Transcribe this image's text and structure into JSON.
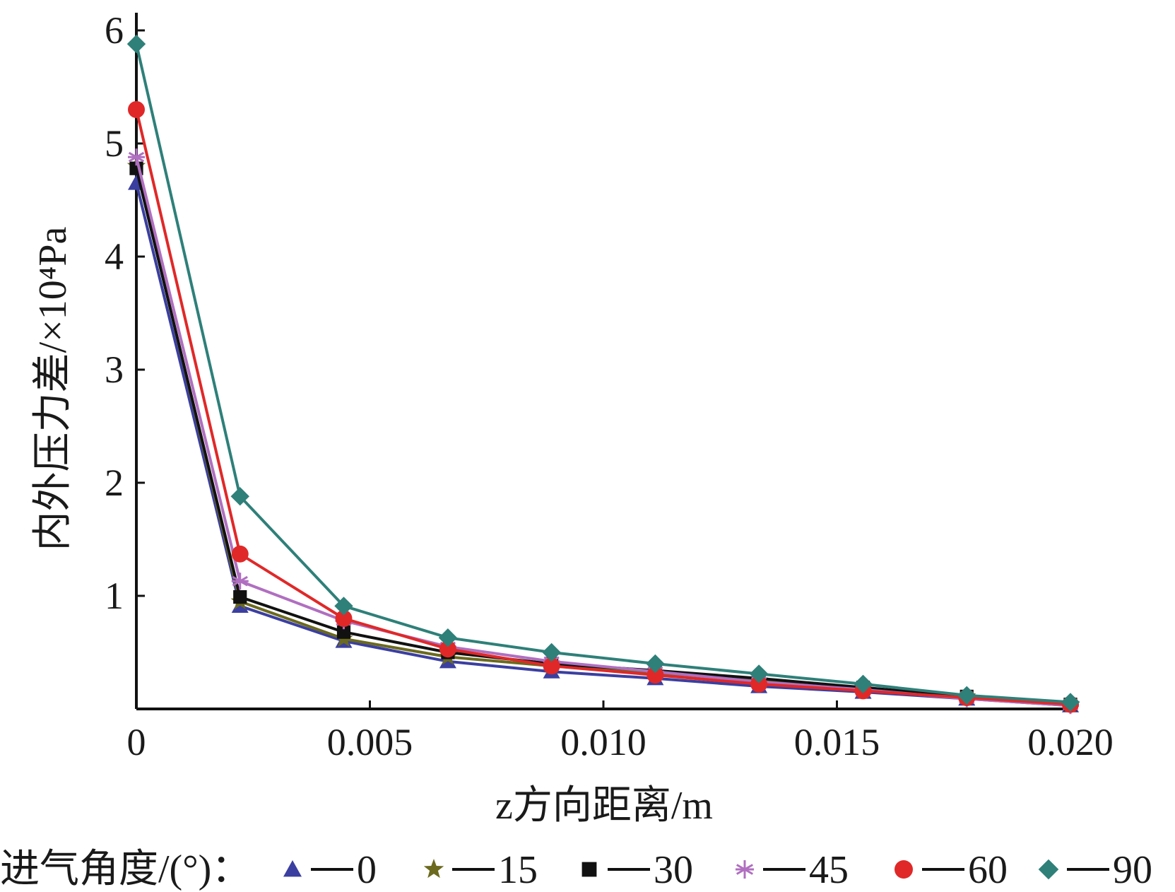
{
  "chart_data": {
    "type": "line",
    "xlabel": "z方向距离/m",
    "ylabel": "内外压力差/×10⁴Pa",
    "xlim": [
      0,
      0.02
    ],
    "ylim": [
      0,
      6
    ],
    "x_ticks": [
      "0",
      "0.005",
      "0.010",
      "0.015",
      "0.020"
    ],
    "x_tick_values": [
      0,
      0.005,
      0.01,
      0.015,
      0.02
    ],
    "y_ticks": [
      "1",
      "2",
      "3",
      "4",
      "5",
      "6"
    ],
    "y_tick_values": [
      1,
      2,
      3,
      4,
      5,
      6
    ],
    "grid": false,
    "legend_position": "bottom",
    "legend_title": "进气角度/(°)：",
    "x": [
      0,
      0.00222,
      0.00444,
      0.00667,
      0.00889,
      0.01111,
      0.01333,
      0.01556,
      0.01778,
      0.02
    ],
    "series": [
      {
        "name": "0",
        "marker": "triangle",
        "color": "#3b3fa0",
        "values": [
          4.65,
          0.91,
          0.6,
          0.42,
          0.33,
          0.27,
          0.2,
          0.15,
          0.09,
          0.03
        ]
      },
      {
        "name": "15",
        "marker": "star",
        "color": "#6b6a1e",
        "values": [
          4.8,
          0.95,
          0.62,
          0.46,
          0.38,
          0.32,
          0.25,
          0.18,
          0.11,
          0.04
        ]
      },
      {
        "name": "30",
        "marker": "square",
        "color": "#111111",
        "values": [
          4.78,
          0.99,
          0.68,
          0.5,
          0.4,
          0.34,
          0.27,
          0.19,
          0.11,
          0.04
        ]
      },
      {
        "name": "45",
        "marker": "asterisk",
        "color": "#b06fc0",
        "values": [
          4.88,
          1.13,
          0.78,
          0.55,
          0.42,
          0.33,
          0.24,
          0.17,
          0.09,
          0.03
        ]
      },
      {
        "name": "60",
        "marker": "circle",
        "color": "#e02828",
        "values": [
          5.3,
          1.37,
          0.8,
          0.53,
          0.38,
          0.3,
          0.22,
          0.16,
          0.1,
          0.04
        ]
      },
      {
        "name": "90",
        "marker": "diamond",
        "color": "#2e8079",
        "values": [
          5.88,
          1.88,
          0.91,
          0.63,
          0.5,
          0.4,
          0.31,
          0.22,
          0.12,
          0.06
        ]
      }
    ]
  }
}
